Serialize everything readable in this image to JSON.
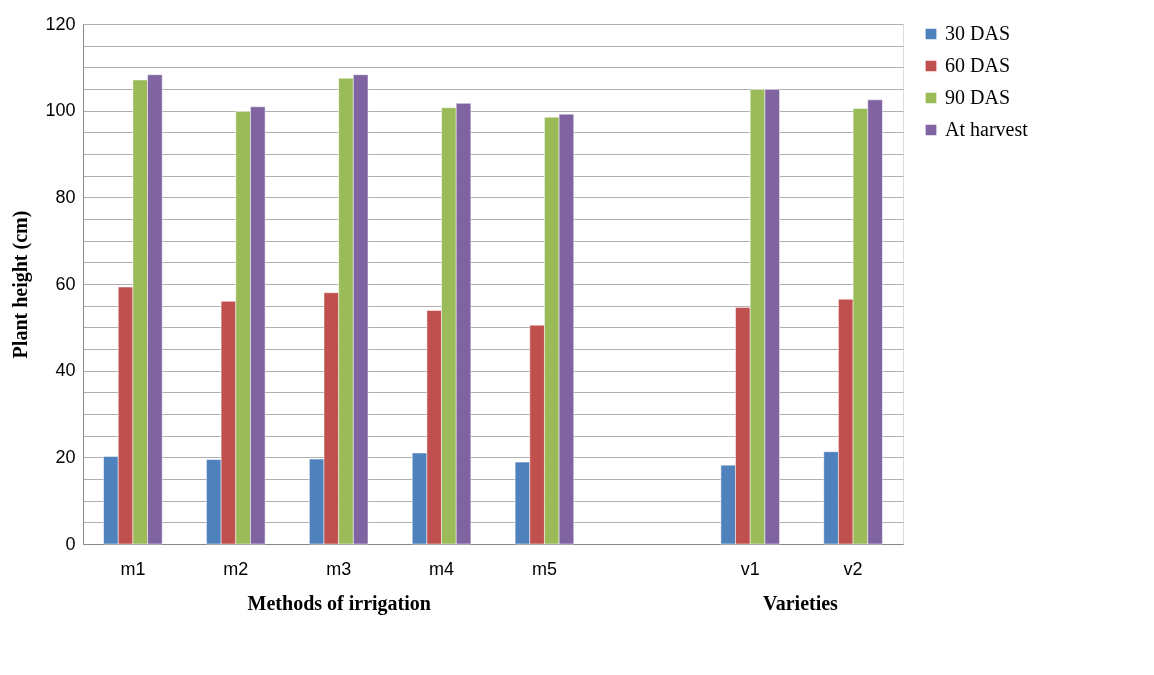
{
  "chart_data": {
    "type": "bar",
    "ylabel": "Plant height (cm)",
    "categories": [
      "m1",
      "m2",
      "m3",
      "m4",
      "m5",
      null,
      "v1",
      "v2"
    ],
    "series": [
      {
        "name": "30 DAS",
        "color": "#4f81bd",
        "values": [
          20.2,
          19.5,
          19.6,
          21.0,
          18.9,
          null,
          18.2,
          21.3
        ]
      },
      {
        "name": "60 DAS",
        "color": "#c0504d",
        "values": [
          59.3,
          56.0,
          58.0,
          53.9,
          50.5,
          null,
          54.6,
          56.5
        ]
      },
      {
        "name": "90 DAS",
        "color": "#9bbb59",
        "values": [
          107.1,
          99.8,
          107.5,
          100.7,
          98.5,
          null,
          104.9,
          100.5
        ]
      },
      {
        "name": "At harvest",
        "color": "#8064a2",
        "values": [
          108.3,
          100.9,
          108.3,
          101.7,
          99.2,
          null,
          104.9,
          102.5
        ]
      }
    ],
    "ylim": [
      0,
      120
    ],
    "yticks": [
      0,
      {
        "value": 5,
        "label": null
      },
      {
        "value": 10,
        "label": null
      },
      {
        "value": 15,
        "label": null
      },
      20,
      {
        "value": 25,
        "label": null
      },
      {
        "value": 30,
        "label": null
      },
      {
        "value": 35,
        "label": null
      },
      40,
      {
        "value": 45,
        "label": null
      },
      {
        "value": 50,
        "label": null
      },
      {
        "value": 55,
        "label": null
      },
      60,
      {
        "value": 65,
        "label": null
      },
      {
        "value": 70,
        "label": null
      },
      {
        "value": 75,
        "label": null
      },
      80,
      {
        "value": 85,
        "label": null
      },
      {
        "value": 90,
        "label": null
      },
      {
        "value": 95,
        "label": null
      },
      100,
      {
        "value": 105,
        "label": null
      },
      {
        "value": 110,
        "label": null
      },
      {
        "value": 115,
        "label": null
      },
      120
    ],
    "grid": "y",
    "legend": "right",
    "annotations": [
      "Methods of irrigation",
      "Varieties"
    ]
  }
}
